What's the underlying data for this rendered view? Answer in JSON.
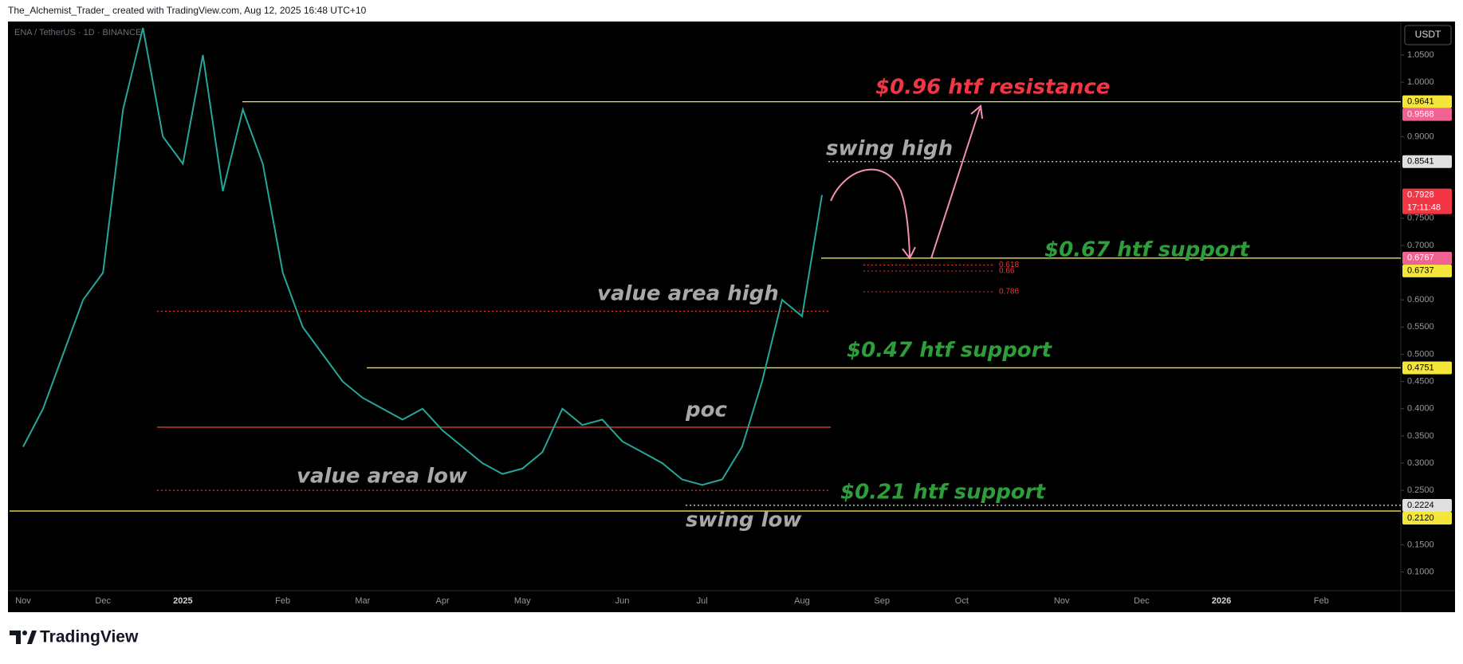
{
  "chart_data": {
    "type": "line",
    "header": "The_Alchemist_Trader_ created with TradingView.com, Aug 12, 2025 16:48 UTC+10",
    "symbol": "ENA / TetherUS · 1D · BINANCE",
    "currency": "USDT",
    "footer": "TradingView",
    "color": "#26a69a",
    "categories": [
      "Nov",
      null,
      null,
      null,
      "Dec",
      null,
      null,
      null,
      "2025",
      null,
      null,
      null,
      null,
      "Feb",
      null,
      null,
      null,
      "Mar",
      null,
      null,
      null,
      "Apr",
      null,
      null,
      null,
      "May",
      null,
      null,
      null,
      null,
      "Jun",
      null,
      null,
      null,
      "Jul",
      null,
      null,
      null,
      null,
      "Aug",
      null,
      null,
      null,
      "Sep",
      null,
      null,
      null,
      "Oct",
      null,
      null,
      null,
      null,
      "Nov",
      null,
      null,
      null,
      "Dec",
      null,
      null,
      null,
      "2026",
      null,
      null,
      null,
      null,
      "Feb",
      null,
      null
    ],
    "values": [
      0.33,
      0.4,
      0.5,
      0.6,
      0.65,
      0.95,
      1.1,
      0.9,
      0.85,
      1.05,
      0.8,
      0.95,
      0.85,
      0.65,
      0.55,
      0.5,
      0.45,
      0.42,
      0.4,
      0.38,
      0.4,
      0.36,
      0.33,
      0.3,
      0.28,
      0.29,
      0.32,
      0.4,
      0.37,
      0.38,
      0.34,
      0.32,
      0.3,
      0.27,
      0.26,
      0.27,
      0.33,
      0.45,
      0.6,
      0.57,
      0.7928,
      null,
      null,
      null,
      null,
      null,
      null,
      null,
      null,
      null,
      null,
      null,
      null,
      null,
      null,
      null,
      null,
      null,
      null,
      null,
      null,
      null,
      null,
      null,
      null,
      null,
      null,
      null
    ],
    "ylim": [
      0.0656,
      1.1115
    ],
    "yticks": [
      {
        "value": 1.05,
        "label": "1.0500"
      },
      {
        "value": 1.0,
        "label": "1.0000"
      },
      {
        "value": 0.9,
        "label": "0.9000"
      },
      {
        "value": 0.75,
        "label": "0.7500"
      },
      {
        "value": 0.7,
        "label": "0.7000"
      },
      {
        "value": 0.6,
        "label": "0.6000"
      },
      {
        "value": 0.55,
        "label": "0.5500"
      },
      {
        "value": 0.5,
        "label": "0.5000"
      },
      {
        "value": 0.45,
        "label": "0.4500"
      },
      {
        "value": 0.4,
        "label": "0.4000"
      },
      {
        "value": 0.35,
        "label": "0.3500"
      },
      {
        "value": 0.3,
        "label": "0.3000"
      },
      {
        "value": 0.25,
        "label": "0.2500"
      },
      {
        "value": 0.15,
        "label": "0.1500"
      },
      {
        "value": 0.1,
        "label": "0.1000"
      }
    ],
    "levels": [
      {
        "value": 0.9641,
        "color": "#f0e442",
        "style": "solid"
      },
      {
        "value": 0.8541,
        "color": "#d0d0d0",
        "style": "dotted"
      },
      {
        "value": 0.6767,
        "color": "#f0e442",
        "style": "solid"
      },
      {
        "value": 0.579,
        "color": "#e53935",
        "style": "dotted"
      },
      {
        "value": 0.4751,
        "color": "#f0e442",
        "style": "solid"
      },
      {
        "value": 0.366,
        "color": "#e53935",
        "style": "solid"
      },
      {
        "value": 0.25,
        "color": "#e53935",
        "style": "dotted"
      },
      {
        "value": 0.2224,
        "color": "#d0d0d0",
        "style": "dotted"
      },
      {
        "value": 0.212,
        "color": "#f0e442",
        "style": "solid"
      }
    ],
    "fib_levels": [
      {
        "ratio": 0.618,
        "price": 0.664
      },
      {
        "ratio": 0.66,
        "price": 0.653
      },
      {
        "ratio": 0.786,
        "price": 0.615
      }
    ],
    "price_labels": [
      {
        "value": 0.9641,
        "label": "0.9641",
        "color": "#f5e63c",
        "text_color": "#000000"
      },
      {
        "value": 0.9568,
        "label": "0.9568",
        "color": "#f06292",
        "text_color": "#ffffff"
      },
      {
        "value": 0.8541,
        "label": "0.8541",
        "color": "#e0e0e0",
        "text_color": "#000000"
      },
      {
        "value": 0.7928,
        "label": "0.7928",
        "color": "#f23645",
        "text_color": "#ffffff"
      },
      {
        "value": 0.6767,
        "label": "0.6767",
        "color": "#f06292",
        "text_color": "#ffffff"
      },
      {
        "value": 0.6737,
        "label": "0.6737",
        "color": "#f5e63c",
        "text_color": "#000000"
      },
      {
        "value": 0.4751,
        "label": "0.4751",
        "color": "#f5e63c",
        "text_color": "#000000"
      },
      {
        "value": 0.2224,
        "label": "0.2224",
        "color": "#e0e0e0",
        "text_color": "#000000"
      },
      {
        "value": 0.212,
        "label": "0.2120",
        "color": "#f5e63c",
        "text_color": "#000000"
      }
    ],
    "countdown": "17:11:48",
    "annotations": [
      {
        "text": "$0.96 htf resistance",
        "color": "#f23645"
      },
      {
        "text": "swing high",
        "color": "#a8a8a8"
      },
      {
        "text": "$0.67 htf support",
        "color": "#2e9e3a"
      },
      {
        "text": "value area high",
        "color": "#a8a8a8"
      },
      {
        "text": "$0.47 htf support",
        "color": "#2e9e3a"
      },
      {
        "text": "poc",
        "color": "#a8a8a8"
      },
      {
        "text": "value area low",
        "color": "#a8a8a8"
      },
      {
        "text": "$0.21 htf support",
        "color": "#2e9e3a"
      },
      {
        "text": "swing low",
        "color": "#a8a8a8"
      }
    ]
  }
}
